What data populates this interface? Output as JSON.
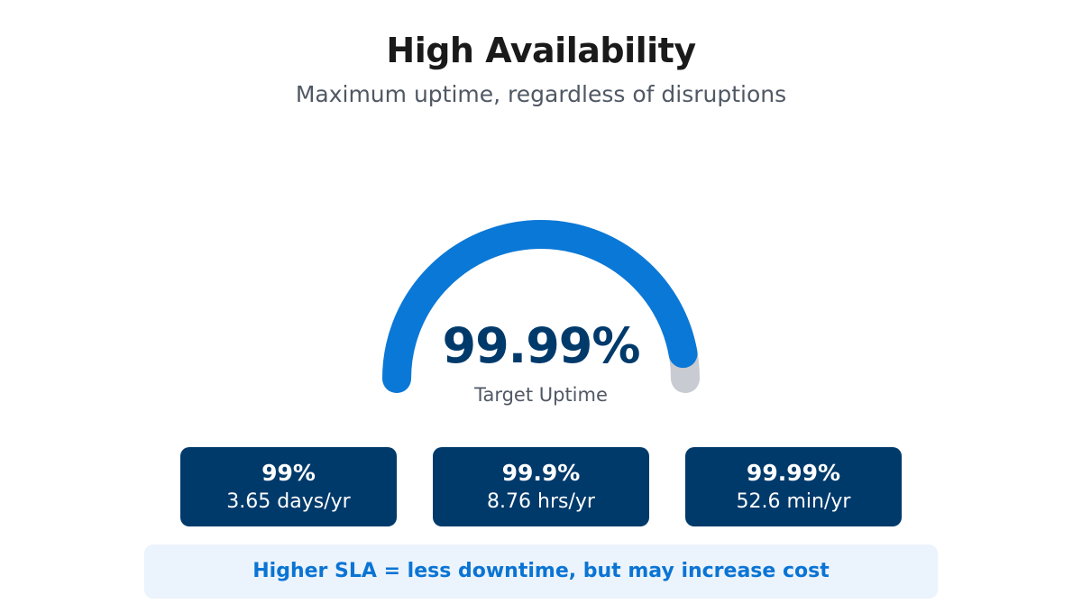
{
  "header": {
    "title": "High Availability",
    "subtitle": "Maximum uptime, regardless of disruptions"
  },
  "gauge": {
    "value_label": "99.99%",
    "caption": "Target Uptime",
    "fill_fraction": 0.9999,
    "fill_color": "#0a78d7",
    "track_color": "#c8cbd1"
  },
  "tiers": [
    {
      "percent": "99%",
      "downtime": "3.65 days/yr"
    },
    {
      "percent": "99.9%",
      "downtime": "8.76 hrs/yr"
    },
    {
      "percent": "99.99%",
      "downtime": "52.6 min/yr"
    }
  ],
  "footer": {
    "note": "Higher SLA = less downtime, but may increase cost"
  },
  "colors": {
    "card_bg": "#003a6b",
    "note_bg": "#ebf3fc",
    "note_text": "#0a74d4"
  }
}
